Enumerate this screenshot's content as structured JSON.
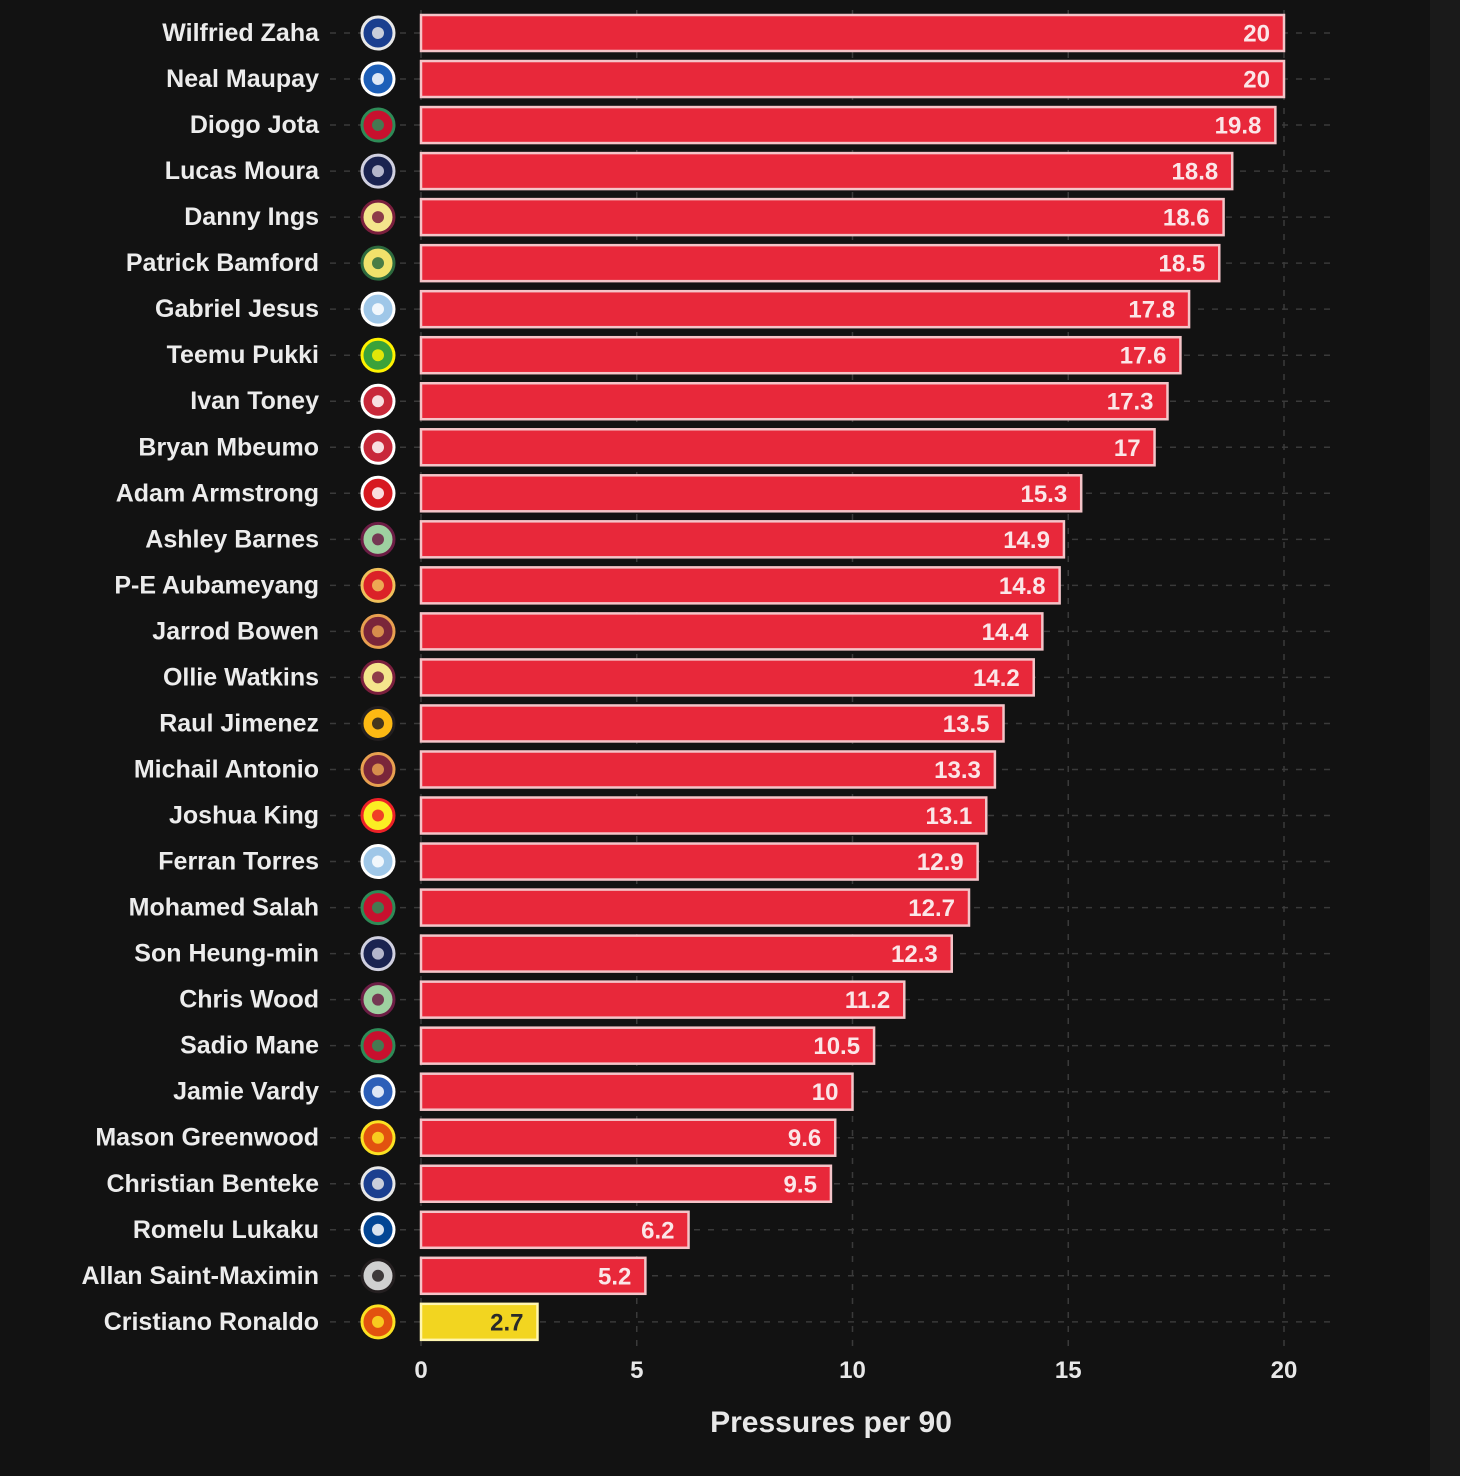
{
  "chart_data": {
    "type": "bar",
    "orientation": "horizontal",
    "title": "",
    "xlabel": "Pressures per 90",
    "ylabel": "",
    "xlim": [
      0,
      21
    ],
    "xticks": [
      0,
      5,
      10,
      15,
      20
    ],
    "grid": true,
    "bar_color": "#e8283a",
    "highlight_color": "#f2d520",
    "highlight_category": "Cristiano Ronaldo",
    "categories": [
      "Wilfried Zaha",
      "Neal Maupay",
      "Diogo Jota",
      "Lucas Moura",
      "Danny Ings",
      "Patrick Bamford",
      "Gabriel Jesus",
      "Teemu Pukki",
      "Ivan Toney",
      "Bryan Mbeumo",
      "Adam Armstrong",
      "Ashley Barnes",
      "P-E Aubameyang",
      "Jarrod Bowen",
      "Ollie Watkins",
      "Raul Jimenez",
      "Michail Antonio",
      "Joshua King",
      "Ferran Torres",
      "Mohamed Salah",
      "Son Heung-min",
      "Chris Wood",
      "Sadio Mane",
      "Jamie Vardy",
      "Mason Greenwood",
      "Christian Benteke",
      "Romelu Lukaku",
      "Allan Saint-Maximin",
      "Cristiano Ronaldo"
    ],
    "values": [
      20,
      20,
      19.8,
      18.8,
      18.6,
      18.5,
      17.8,
      17.6,
      17.3,
      17,
      15.3,
      14.9,
      14.8,
      14.4,
      14.2,
      13.5,
      13.3,
      13.1,
      12.9,
      12.7,
      12.3,
      11.2,
      10.5,
      10,
      9.6,
      9.5,
      6.2,
      5.2,
      2.7
    ],
    "value_labels": [
      "20",
      "20",
      "19.8",
      "18.8",
      "18.6",
      "18.5",
      "17.8",
      "17.6",
      "17.3",
      "17",
      "15.3",
      "14.9",
      "14.8",
      "14.4",
      "14.2",
      "13.5",
      "13.3",
      "13.1",
      "12.9",
      "12.7",
      "12.3",
      "11.2",
      "10.5",
      "10",
      "9.6",
      "9.5",
      "6.2",
      "5.2",
      "2.7"
    ],
    "clubs": [
      "crystal-palace",
      "brighton",
      "liverpool",
      "tottenham",
      "aston-villa",
      "leeds",
      "man-city",
      "norwich",
      "brentford",
      "brentford",
      "southampton",
      "burnley",
      "arsenal",
      "west-ham",
      "aston-villa",
      "wolves",
      "west-ham",
      "watford",
      "man-city",
      "liverpool",
      "tottenham",
      "burnley",
      "liverpool",
      "leicester",
      "man-utd",
      "crystal-palace",
      "chelsea",
      "newcastle",
      "man-utd"
    ]
  },
  "club_colors": {
    "crystal-palace": [
      "#1b3f8f",
      "#e8e8e8"
    ],
    "brighton": [
      "#1d5fb8",
      "#ffffff"
    ],
    "liverpool": [
      "#c8102e",
      "#2e8b57"
    ],
    "tottenham": [
      "#1a2350",
      "#d0d0e0"
    ],
    "aston-villa": [
      "#f4e58c",
      "#7a1f3d"
    ],
    "leeds": [
      "#f1e16b",
      "#2d6a3e"
    ],
    "man-city": [
      "#9fc7e8",
      "#ffffff"
    ],
    "norwich": [
      "#3aa23a",
      "#fff200"
    ],
    "brentford": [
      "#c8283a",
      "#ffffff"
    ],
    "southampton": [
      "#d71920",
      "#ffffff"
    ],
    "burnley": [
      "#9ed0a0",
      "#6c1d45"
    ],
    "arsenal": [
      "#db2128",
      "#f0c05a"
    ],
    "west-ham": [
      "#7a263a",
      "#e8a050"
    ],
    "wolves": [
      "#fdb913",
      "#231f20"
    ],
    "watford": [
      "#fbee23",
      "#ed2127"
    ],
    "leicester": [
      "#2d5fb8",
      "#ffffff"
    ],
    "man-utd": [
      "#e2520f",
      "#fbe122"
    ],
    "chelsea": [
      "#034694",
      "#ffffff"
    ],
    "newcastle": [
      "#d0d0d0",
      "#241f20"
    ]
  }
}
